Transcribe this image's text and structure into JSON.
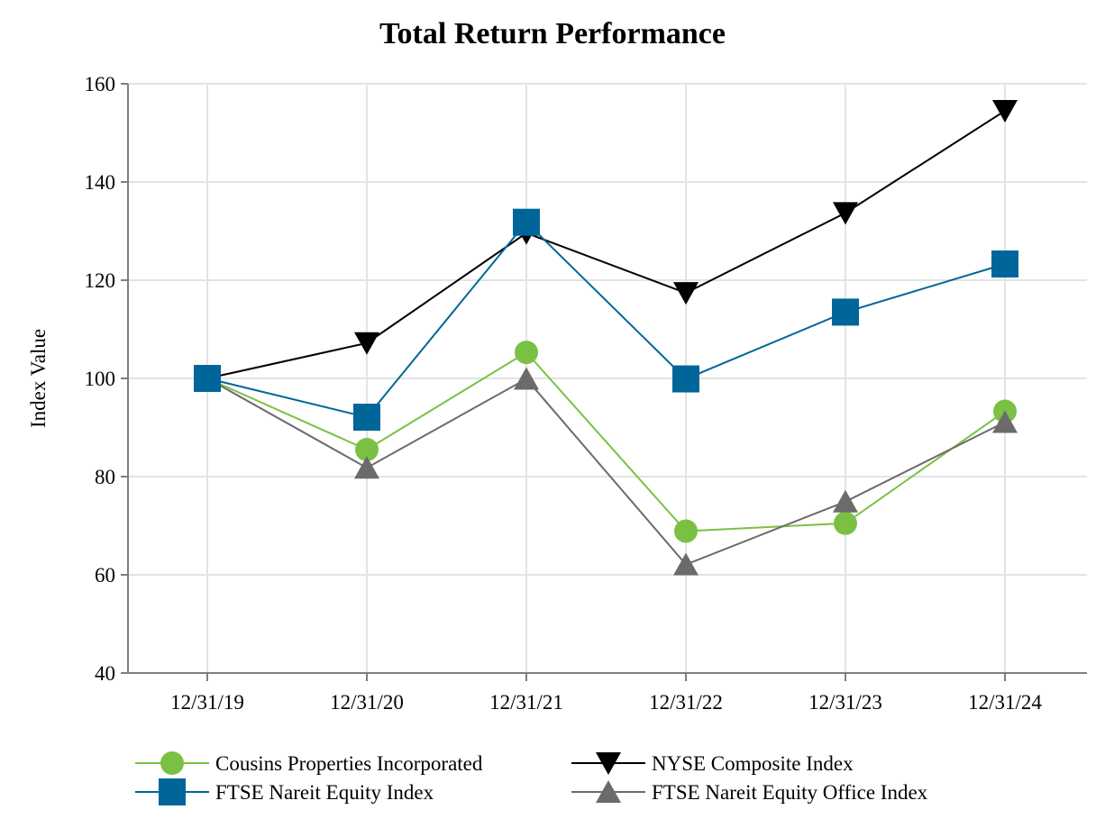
{
  "chart_data": {
    "type": "line",
    "title": "Total Return Performance",
    "xlabel": "",
    "ylabel": "Index Value",
    "ylim": [
      40,
      160
    ],
    "yticks": [
      40,
      60,
      80,
      100,
      120,
      140,
      160
    ],
    "grid": true,
    "legend_position": "bottom",
    "categories": [
      "12/31/19",
      "12/31/20",
      "12/31/21",
      "12/31/22",
      "12/31/23",
      "12/31/24"
    ],
    "series": [
      {
        "name": "Cousins Properties Incorporated",
        "marker": "circle",
        "color": "#7AC143",
        "values": [
          100,
          85.5,
          105.3,
          68.9,
          70.5,
          93.3
        ]
      },
      {
        "name": "FTSE Nareit Equity Index",
        "marker": "square",
        "color": "#006699",
        "values": [
          100,
          92.1,
          131.8,
          99.9,
          113.5,
          123.3
        ]
      },
      {
        "name": "NYSE Composite Index",
        "marker": "triangle-down",
        "color": "#000000",
        "values": [
          100,
          107.2,
          129.6,
          117.4,
          133.7,
          154.5
        ]
      },
      {
        "name": "FTSE Nareit Equity Office Index",
        "marker": "triangle-up",
        "color": "#6B6B6B",
        "values": [
          100,
          81.8,
          99.9,
          62.1,
          74.9,
          91.1
        ]
      }
    ]
  }
}
